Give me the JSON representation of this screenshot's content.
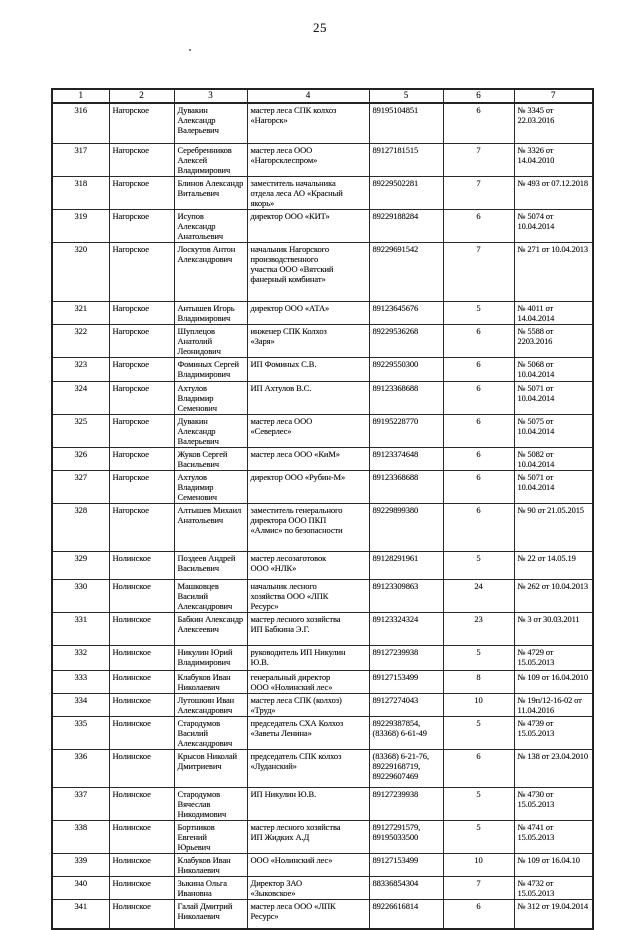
{
  "page_number": "25",
  "table": {
    "column_headers": [
      "1",
      "2",
      "3",
      "4",
      "5",
      "6",
      "7"
    ],
    "rows": [
      {
        "num": "316",
        "district": "Нагорское",
        "name": "Дувакин Александр\nВалерьевич",
        "position": "мастер леса СПК колхоз\n«Нагорск»",
        "phone": "89195104851",
        "count": "6",
        "doc": "№ 3345 от\n22.03.2016"
      },
      {
        "num": "317",
        "district": "Нагорское",
        "name": "Серебренников\nАлексей\nВладимирович",
        "position": "мастер леса ООО\n«Нагорсклеспром»",
        "phone": "89127181515",
        "count": "7",
        "doc": "№ 3326 от\n14.04.2010"
      },
      {
        "num": "318",
        "district": "Нагорское",
        "name": "Блинов Александр\nВитальевич",
        "position": "заместитель начальника\nотдела леса АО «Красный\nякорь»",
        "phone": "89229502281",
        "count": "7",
        "doc": "№ 493 от 07.12.2018"
      },
      {
        "num": "319",
        "district": "Нагорское",
        "name": "Исупов Александр\nАнатольевич",
        "position": "директор ООО «КИТ»",
        "phone": "89229188284",
        "count": "6",
        "doc": "№ 5074 от\n10.04.2014"
      },
      {
        "num": "320",
        "district": "Нагорское",
        "name": "Лоскутов Антон\nАлександрович",
        "position": "начальник Нагорского\nпроизводственного\nучастка ООО «Вятский\nфанерный комбинат»",
        "phone": "89229691542",
        "count": "7",
        "doc": "№ 271 от 10.04.2013"
      },
      {
        "num": "321",
        "district": "Нагорское",
        "name": "Антышев Игорь\nВладимирович",
        "position": "директор ООО «АТА»",
        "phone": "89123645676",
        "count": "5",
        "doc": "№ 4011 от\n14.04.2014"
      },
      {
        "num": "322",
        "district": "Нагорское",
        "name": "Шуплецов Анатолий\nЛеонидович",
        "position": "инженер СПК Колхоз\n«Заря»",
        "phone": "89229536268",
        "count": "6",
        "doc": "№ 5588 от\n2203.2016"
      },
      {
        "num": "323",
        "district": "Нагорское",
        "name": "Фоминых Сергей\nВладимирович",
        "position": "ИП Фоминых С.В.",
        "phone": "89229550300",
        "count": "6",
        "doc": "№ 5068 от\n10.04.2014"
      },
      {
        "num": "324",
        "district": "Нагорское",
        "name": "Ахтулов Владимир\nСеменович",
        "position": "ИП Ахтулов В.С.",
        "phone": "89123368688",
        "count": "6",
        "doc": "№ 5071 от\n10.04.2014"
      },
      {
        "num": "325",
        "district": "Нагорское",
        "name": "Дувакин Александр\nВалерьевич",
        "position": "мастер леса ООО\n«Северлес»",
        "phone": "89195228770",
        "count": "6",
        "doc": "№ 5075 от\n10.04.2014"
      },
      {
        "num": "326",
        "district": "Нагорское",
        "name": "Жуков Сергей\nВасильевич",
        "position": "мастер леса ООО «КиМ»",
        "phone": "89123374648",
        "count": "6",
        "doc": "№ 5082 от\n10.04.2014"
      },
      {
        "num": "327",
        "district": "Нагорское",
        "name": "Ахтулов Владимир\nСеменович",
        "position": "директор ООО «Рубин-М»",
        "phone": "89123368688",
        "count": "6",
        "doc": "№ 5071 от\n10.04.2014"
      },
      {
        "num": "328",
        "district": "Нагорское",
        "name": "Алтышев Михаил\nАнатольевич",
        "position": "заместитель генерального\nдиректора ООО ПКП\n«Алмис» по безопасности",
        "phone": "89229899380",
        "count": "6",
        "doc": "№ 90 от 21.05.2015"
      },
      {
        "num": "329",
        "district": "Нолинское",
        "name": "Поздеев Андрей\nВасильевич",
        "position": "мастер лесозаготовок\nООО «НЛК»",
        "phone": "89128291961",
        "count": "5",
        "doc": "№ 22 от 14.05.19"
      },
      {
        "num": "330",
        "district": "Нолинское",
        "name": "Машковцев Василий\nАлександрович",
        "position": "начальник лесного\nхозяйства ООО «ЛПК\nРесурс»",
        "phone": "89123309863",
        "count": "24",
        "doc": "№ 262 от 10.04.2013"
      },
      {
        "num": "331",
        "district": "Нолинское",
        "name": "Бабкин Александр\nАлексеевич",
        "position": "мастер лесного хозяйства\nИП Бабкина Э.Г.",
        "phone": "89123324324",
        "count": "23",
        "doc": "№ 3 от 30.03.2011"
      },
      {
        "num": "332",
        "district": "Нолинское",
        "name": "Никулин Юрий\nВладимирович",
        "position": "руководитель ИП Никулин\nЮ.В.",
        "phone": "89127239938",
        "count": "5",
        "doc": "№ 4729 от\n15.05.2013"
      },
      {
        "num": "333",
        "district": "Нолинское",
        "name": "Клабуков Иван\nНиколаевич",
        "position": "генеральный директор\nООО «Нолинский лес»",
        "phone": "89127153499",
        "count": "8",
        "doc": "№ 109 от 16.04.2010"
      },
      {
        "num": "334",
        "district": "Нолинское",
        "name": "Лутошкин Иван\nАлександрович",
        "position": "мастер леса СПК (колхоз)\n«Труд»",
        "phone": "89127274043",
        "count": "10",
        "doc": "№ 19п/12-16-02 от\n11.04.2016"
      },
      {
        "num": "335",
        "district": "Нолинское",
        "name": "Стародумов Василий\nАлександрович",
        "position": "председатель СХА Колхоз\n«Заветы Ленина»",
        "phone": "89229387854,\n(83368) 6-61-49",
        "count": "5",
        "doc": "№ 4739 от\n15.05.2013"
      },
      {
        "num": "336",
        "district": "Нолинское",
        "name": "Крысов Николай\nДмитриевич",
        "position": "председатель СПК колхоз\n«Луданский»",
        "phone": "(83368) 6-21-76,\n89229168719,\n89229607469",
        "count": "6",
        "doc": "№ 138 от 23.04.2010"
      },
      {
        "num": "337",
        "district": "Нолинское",
        "name": "Стародумов Вячеслав\nНикодимович",
        "position": "ИП Никулин Ю.В.",
        "phone": "89127239938",
        "count": "5",
        "doc": "№ 4730 от\n15.05.2013"
      },
      {
        "num": "338",
        "district": "Нолинское",
        "name": "Бортников Евгений\nЮрьевич",
        "position": "мастер лесного хозяйства\nИП Жидких А.Д",
        "phone": "89127291579,\n89195033500",
        "count": "5",
        "doc": "№ 4741 от\n15.05.2013"
      },
      {
        "num": "339",
        "district": "Нолинское",
        "name": "Клабуков Иван\nНиколаевич",
        "position": "ООО «Нолинский лес»",
        "phone": "89127153499",
        "count": "10",
        "doc": "№ 109 от 16.04.10"
      },
      {
        "num": "340",
        "district": "Нолинское",
        "name": "Зыкина Ольга\nИвановна",
        "position": "Директор ЗАО\n«Зыковское»",
        "phone": "88336854304",
        "count": "7",
        "doc": "№ 4732 от\n15.05.2013"
      },
      {
        "num": "341",
        "district": "Нолинское",
        "name": "Галай Дмитрий\nНиколаевич",
        "position": "мастер леса ООО «ЛПК\nРесурс»",
        "phone": "89226616814",
        "count": "6",
        "doc": "№ 312 от 19.04.2014"
      }
    ]
  }
}
